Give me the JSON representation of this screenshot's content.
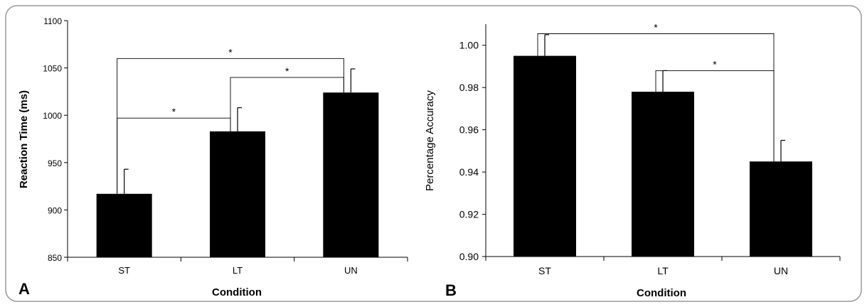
{
  "figure": {
    "border_color": "#9a9a9a",
    "bar_color": "#000000"
  },
  "chart_data": [
    {
      "type": "bar",
      "panel_label": "A",
      "title": "",
      "xlabel": "Condition",
      "ylabel": "Reaction Time (ms)",
      "categories": [
        "ST",
        "LT",
        "UN"
      ],
      "values": [
        917,
        983,
        1024
      ],
      "error_plus": [
        26,
        25,
        25
      ],
      "ylim": [
        850,
        1100
      ],
      "yticks": [
        850,
        900,
        950,
        1000,
        1050,
        1100
      ],
      "ytick_labels": [
        "850",
        "900",
        "950",
        "1000",
        "1050",
        "1100"
      ],
      "grid": false,
      "significance": [
        {
          "from": 0,
          "to": 1,
          "level": 997,
          "label": "*"
        },
        {
          "from": 1,
          "to": 2,
          "level": 1040,
          "label": "*"
        },
        {
          "from": 0,
          "to": 2,
          "level": 1060,
          "label": "*"
        }
      ]
    },
    {
      "type": "bar",
      "panel_label": "B",
      "title": "",
      "xlabel": "Condition",
      "ylabel": "Percentage Accuracy",
      "categories": [
        "ST",
        "LT",
        "UN"
      ],
      "values": [
        0.995,
        0.978,
        0.945
      ],
      "error_plus": [
        0.01,
        0.01,
        0.01
      ],
      "ylim": [
        0.9,
        1.01
      ],
      "yticks": [
        0.9,
        0.92,
        0.94,
        0.96,
        0.98,
        1.0
      ],
      "ytick_labels": [
        "0.90",
        "0.92",
        "0.94",
        "0.96",
        "0.98",
        "1.00"
      ],
      "grid": false,
      "significance": [
        {
          "from": 1,
          "to": 2,
          "level": 0.988,
          "label": "*"
        },
        {
          "from": 0,
          "to": 2,
          "level": 1.0055,
          "label": "*"
        }
      ]
    }
  ]
}
